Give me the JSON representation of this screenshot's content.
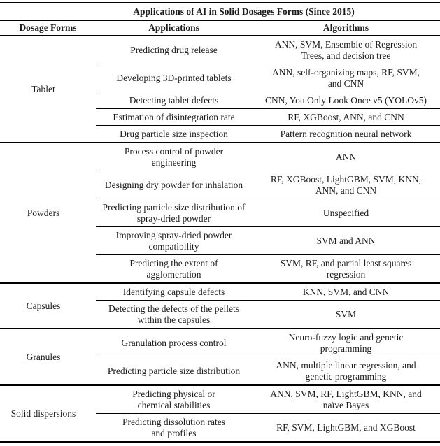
{
  "table": {
    "title": "Applications of AI in Solid Dosages Forms (Since 2015)",
    "columns": [
      "Dosage Forms",
      "Applications",
      "Algorithms"
    ],
    "groups": [
      {
        "dosage_form": "Tablet",
        "rows": [
          {
            "application": "Predicting drug release",
            "algorithms": "ANN, SVM, Ensemble of Regression\nTrees, and decision tree"
          },
          {
            "application": "Developing 3D-printed tablets",
            "algorithms": "ANN, self-organizing maps, RF, SVM,\nand CNN"
          },
          {
            "application": "Detecting tablet defects",
            "algorithms": "CNN, You Only Look Once v5 (YOLOv5)"
          },
          {
            "application": "Estimation of disintegration rate",
            "algorithms": "RF, XGBoost, ANN, and CNN"
          },
          {
            "application": "Drug particle size inspection",
            "algorithms": "Pattern recognition neural network"
          }
        ]
      },
      {
        "dosage_form": "Powders",
        "rows": [
          {
            "application": "Process control of powder\nengineering",
            "algorithms": "ANN"
          },
          {
            "application": "Designing dry powder for inhalation",
            "algorithms": "RF, XGBoost, LightGBM, SVM, KNN,\nANN, and CNN"
          },
          {
            "application": "Predicting particle size distribution of\nspray-dried powder",
            "algorithms": "Unspecified"
          },
          {
            "application": "Improving spray-dried powder\ncompatibility",
            "algorithms": "SVM and ANN"
          },
          {
            "application": "Predicting the extent of\nagglomeration",
            "algorithms": "SVM, RF, and partial least squares\nregression"
          }
        ]
      },
      {
        "dosage_form": "Capsules",
        "rows": [
          {
            "application": "Identifying capsule defects",
            "algorithms": "KNN, SVM, and CNN"
          },
          {
            "application": "Detecting the defects of the pellets\nwithin the capsules",
            "algorithms": "SVM"
          }
        ]
      },
      {
        "dosage_form": "Granules",
        "rows": [
          {
            "application": "Granulation process control",
            "algorithms": "Neuro-fuzzy logic and genetic\nprogramming"
          },
          {
            "application": "Predicting particle size distribution",
            "algorithms": "ANN, multiple linear regression, and\ngenetic programming"
          }
        ]
      },
      {
        "dosage_form": "Solid dispersions",
        "rows": [
          {
            "application": "Predicting physical or\nchemical stabilities",
            "algorithms": "ANN, SVM, RF, LightGBM, KNN, and\nnaïve Bayes"
          },
          {
            "application": "Predicting dissolution rates\nand profiles",
            "algorithms": "RF, SVM, LightGBM, and XGBoost"
          }
        ]
      }
    ]
  },
  "colors": {
    "text": "#1c1c1c",
    "rule_lines": "#000000",
    "background": "#ffffff"
  }
}
